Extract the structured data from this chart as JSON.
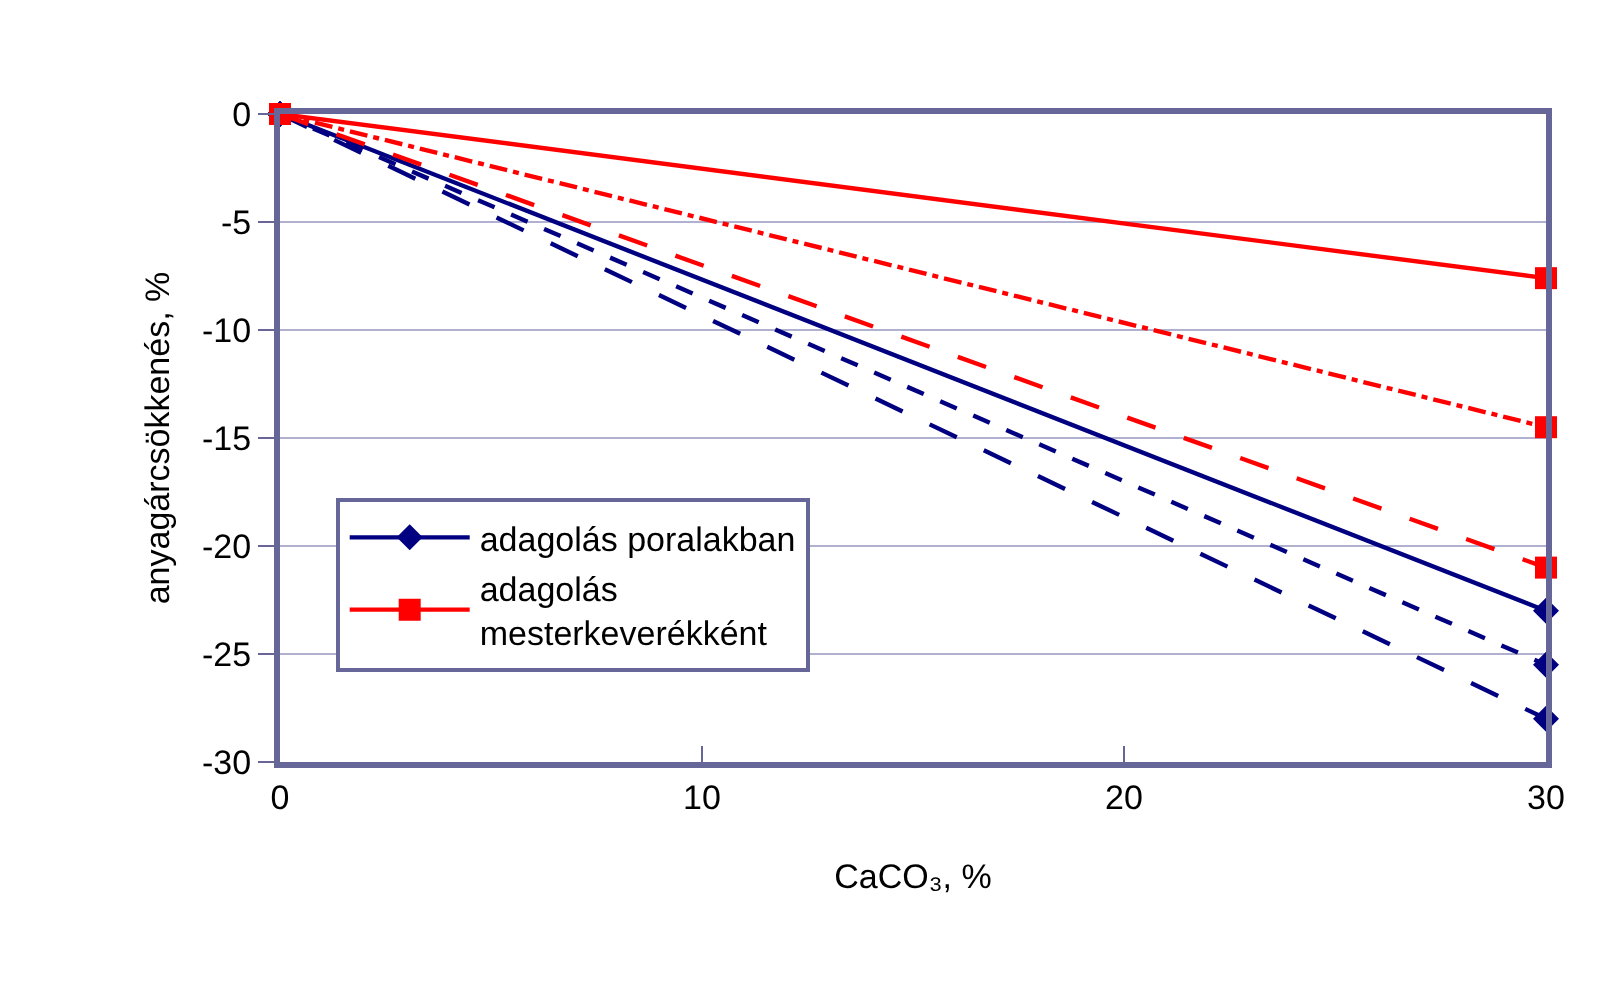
{
  "chart_data": {
    "type": "line",
    "xlabel": "CaCO₃, %",
    "ylabel": "anyagárcsökkenés, %",
    "x": [
      0,
      30
    ],
    "xlim": [
      0,
      30
    ],
    "xticks": [
      0,
      10,
      20,
      30
    ],
    "ylim": [
      -30,
      0
    ],
    "yticks": [
      0,
      -5,
      -10,
      -15,
      -20,
      -25,
      -30
    ],
    "grid": "y",
    "legend": "bottom left",
    "series": [
      {
        "name": "adagolás poralakban",
        "color": "#000080",
        "values": [
          0,
          -23
        ],
        "line_style": "solid",
        "marker": "diamond"
      },
      {
        "color": "#000080",
        "values": [
          0,
          -25.5
        ],
        "line_style": "dashed",
        "marker": "diamond"
      },
      {
        "color": "#000080",
        "values": [
          0,
          -28
        ],
        "line_style": "longdash",
        "marker": "diamond"
      },
      {
        "name": "adagolás mesterkeverékként",
        "color": "#ff0000",
        "values": [
          0,
          -7.6
        ],
        "line_style": "solid",
        "marker": "square"
      },
      {
        "color": "#ff0000",
        "values": [
          0,
          -14.5
        ],
        "line_style": "dashdot",
        "marker": "square"
      },
      {
        "color": "#ff0000",
        "values": [
          0,
          -21
        ],
        "line_style": "longdash",
        "marker": "square"
      }
    ]
  }
}
